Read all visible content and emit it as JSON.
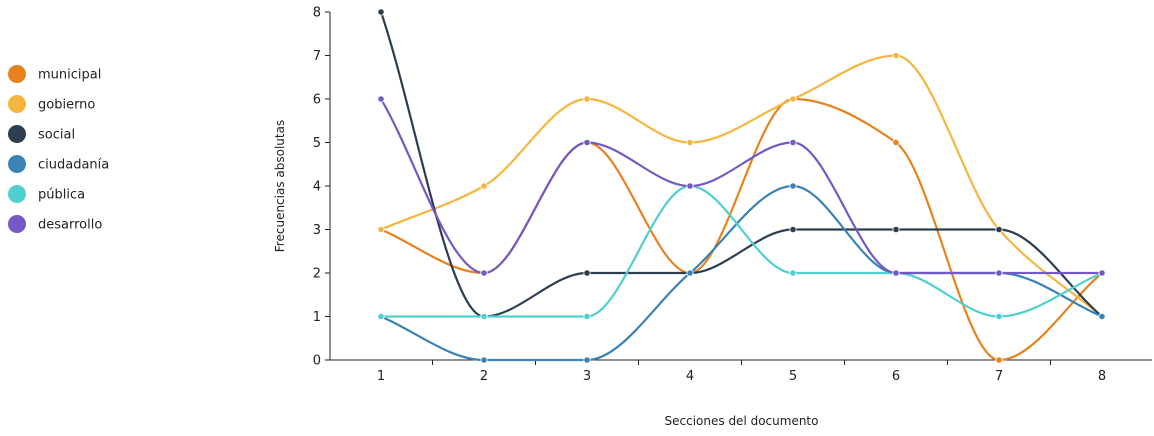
{
  "chart_data": {
    "type": "line",
    "title": "",
    "xlabel": "Secciones del documento",
    "ylabel": "Frecuencias absolutas",
    "x": [
      1,
      2,
      3,
      4,
      5,
      6,
      7,
      8
    ],
    "ylim": [
      0,
      8
    ],
    "yticks": [
      0,
      1,
      2,
      3,
      4,
      5,
      6,
      7,
      8
    ],
    "grid": false,
    "legend_position": "left",
    "smooth": true,
    "series": [
      {
        "name": "municipal",
        "color": "#e8821e",
        "values": [
          3,
          2,
          5,
          2,
          6,
          5,
          0,
          2
        ]
      },
      {
        "name": "gobierno",
        "color": "#f4b63f",
        "values": [
          3,
          4,
          6,
          5,
          6,
          7,
          3,
          1
        ]
      },
      {
        "name": "social",
        "color": "#2c3e50",
        "values": [
          8,
          1,
          2,
          2,
          3,
          3,
          3,
          1
        ]
      },
      {
        "name": "ciudadanía",
        "color": "#3b82b5",
        "values": [
          1,
          0,
          0,
          2,
          4,
          2,
          2,
          1
        ]
      },
      {
        "name": "pública",
        "color": "#4fcfcf",
        "values": [
          1,
          1,
          1,
          4,
          2,
          2,
          1,
          2
        ]
      },
      {
        "name": "desarrollo",
        "color": "#7359c6",
        "values": [
          6,
          2,
          5,
          4,
          5,
          2,
          2,
          2
        ]
      }
    ]
  }
}
